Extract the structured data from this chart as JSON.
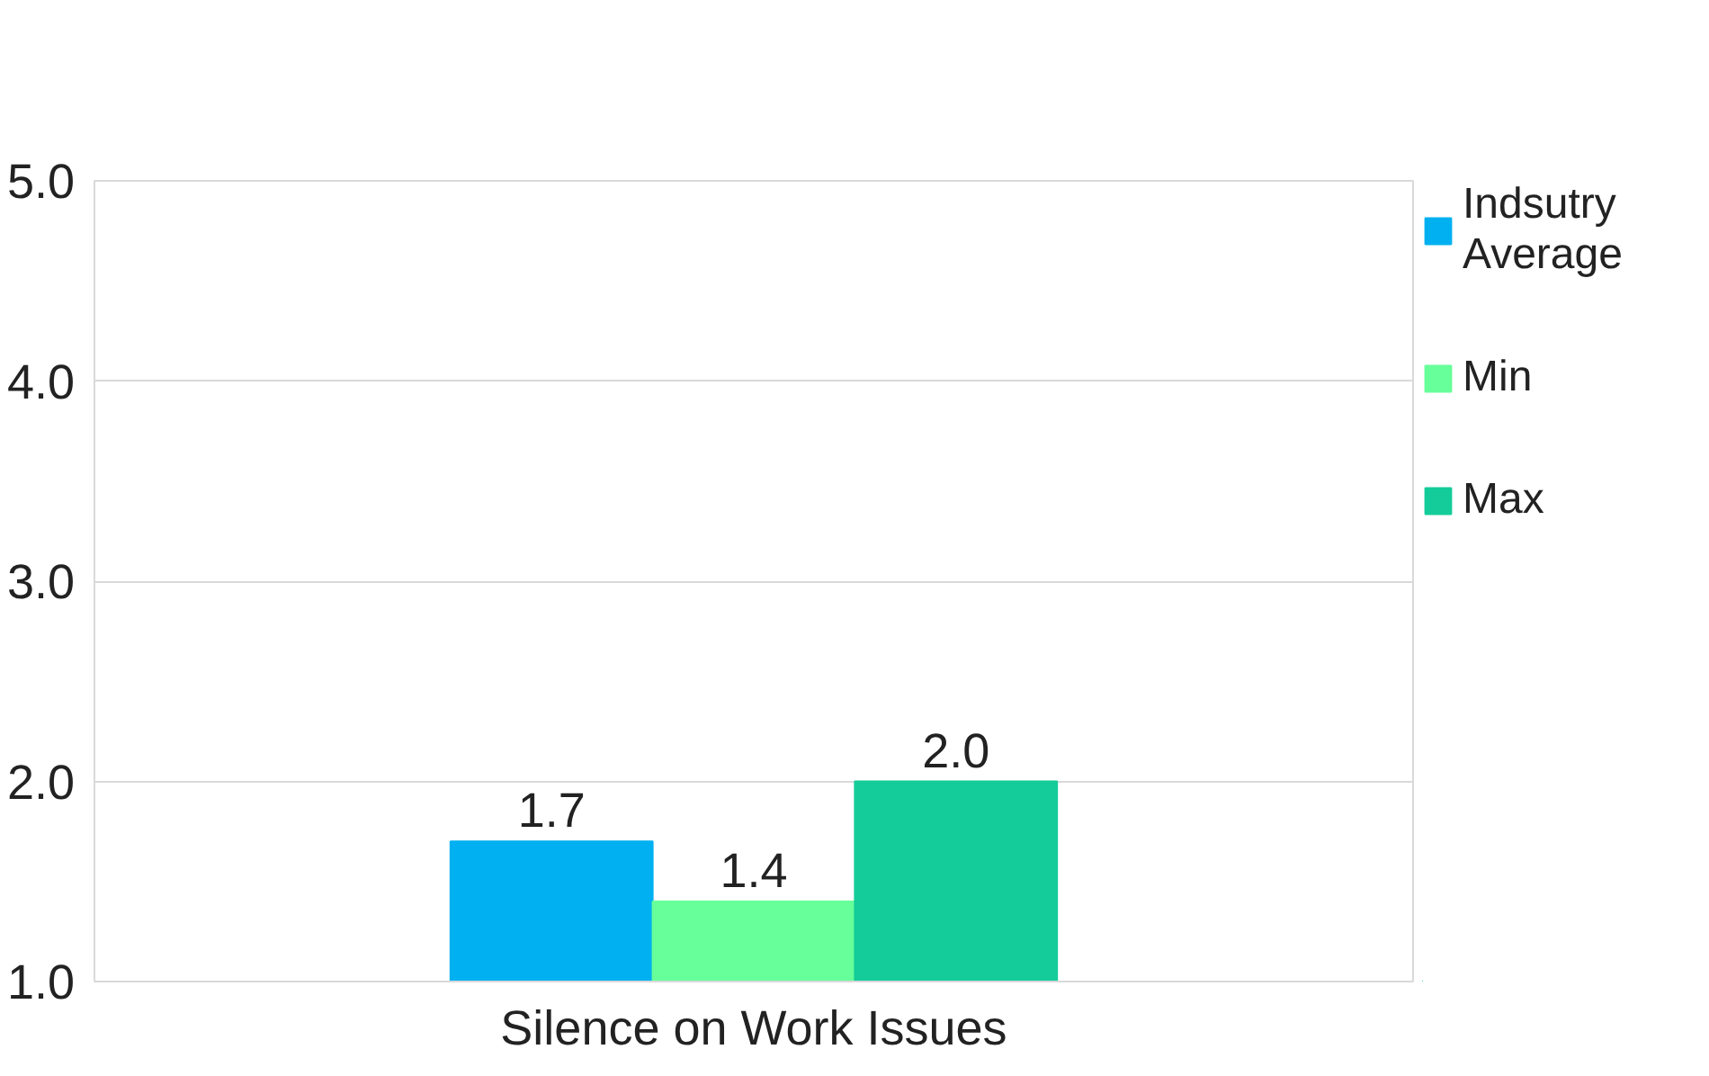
{
  "chart_data": {
    "type": "bar",
    "categories": [
      "Silence on Work Issues"
    ],
    "series": [
      {
        "name": "Indsutry Average",
        "color": "#00b0f0",
        "values": [
          1.7
        ],
        "value_labels": [
          "1.7"
        ]
      },
      {
        "name": "Min",
        "color": "#66ff99",
        "values": [
          1.4
        ],
        "value_labels": [
          "1.4"
        ]
      },
      {
        "name": "Max",
        "color": "#14cc99",
        "values": [
          2.0
        ],
        "value_labels": [
          "2.0"
        ]
      }
    ],
    "ylim": [
      1.0,
      5.0
    ],
    "yticks": [
      {
        "value": 1.0,
        "label": "1.0"
      },
      {
        "value": 2.0,
        "label": "2.0"
      },
      {
        "value": 3.0,
        "label": "3.0"
      },
      {
        "value": 4.0,
        "label": "4.0"
      },
      {
        "value": 5.0,
        "label": "5.0"
      }
    ],
    "grid": "y",
    "legend": "right"
  }
}
